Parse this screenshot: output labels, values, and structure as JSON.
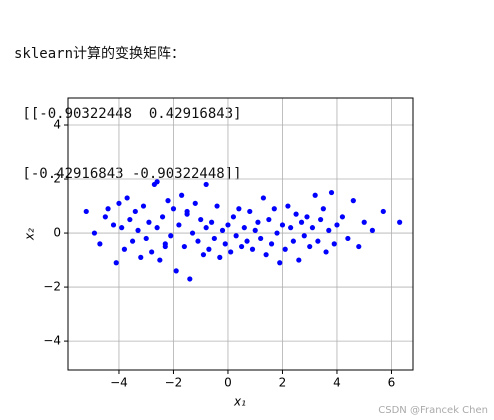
{
  "console": {
    "title": "sklearn计算的变换矩阵：",
    "matrix_lines": [
      " [[-0.90322448  0.42916843]",
      " [-0.42916843 -0.90322448]]"
    ]
  },
  "chart_data": {
    "type": "scatter",
    "xlabel": "x₁",
    "ylabel": "x₂",
    "color": "#0000ff",
    "grid": true,
    "xlim": [
      -5.87,
      6.79
    ],
    "ylim": [
      -5.07,
      5.0
    ],
    "xticks": [
      {
        "value": -4,
        "label": "−4"
      },
      {
        "value": -2,
        "label": "−2"
      },
      0,
      2,
      4,
      6
    ],
    "yticks": [
      {
        "value": -4,
        "label": "−4"
      },
      {
        "value": -2,
        "label": "−2"
      },
      0,
      2,
      4
    ],
    "x": [
      -5.2,
      -4.9,
      -4.7,
      -4.5,
      -4.4,
      -4.2,
      -4.1,
      -4.0,
      -3.9,
      -3.8,
      -3.7,
      -3.6,
      -3.5,
      -3.4,
      -3.3,
      -3.2,
      -3.1,
      -3.0,
      -2.9,
      -2.8,
      -2.7,
      -2.6,
      -2.5,
      -2.4,
      -2.3,
      -2.2,
      -2.1,
      -2.0,
      -1.9,
      -1.8,
      -1.7,
      -1.6,
      -1.5,
      -1.4,
      -1.3,
      -1.2,
      -1.1,
      -1.0,
      -0.9,
      -0.8,
      -0.7,
      -0.6,
      -0.5,
      -0.4,
      -0.3,
      -0.2,
      -0.1,
      0.0,
      0.1,
      0.2,
      0.3,
      0.4,
      0.5,
      0.6,
      0.7,
      0.8,
      0.9,
      1.0,
      1.1,
      1.2,
      1.3,
      1.4,
      1.5,
      1.6,
      1.7,
      1.8,
      1.9,
      2.0,
      2.1,
      2.2,
      2.3,
      2.4,
      2.5,
      2.6,
      2.7,
      2.8,
      2.9,
      3.0,
      3.1,
      3.2,
      3.3,
      3.4,
      3.5,
      3.6,
      3.7,
      3.8,
      3.9,
      4.0,
      4.2,
      4.4,
      4.6,
      4.8,
      5.0,
      5.3,
      5.7,
      6.3,
      -2.6,
      -2.3,
      -1.5,
      -0.8
    ],
    "y": [
      0.8,
      0.0,
      -0.4,
      0.6,
      0.9,
      0.3,
      -1.1,
      1.1,
      0.2,
      -0.6,
      1.3,
      0.5,
      -0.3,
      0.8,
      0.1,
      -0.9,
      1.0,
      -0.2,
      0.4,
      -0.7,
      1.8,
      0.2,
      -1.0,
      0.6,
      -0.4,
      1.2,
      -0.1,
      0.9,
      -1.4,
      0.3,
      1.4,
      -0.5,
      0.7,
      -1.7,
      0.0,
      1.1,
      -0.3,
      0.5,
      -0.8,
      0.2,
      -0.6,
      0.4,
      -0.2,
      1.0,
      -0.9,
      0.1,
      -0.4,
      0.3,
      -0.7,
      0.6,
      -0.1,
      0.9,
      -0.5,
      0.2,
      -0.3,
      0.8,
      -0.6,
      0.1,
      0.4,
      -0.2,
      1.3,
      -0.8,
      0.5,
      -0.4,
      0.9,
      0.0,
      -1.1,
      0.3,
      -0.6,
      1.0,
      0.2,
      -0.3,
      0.7,
      -1.0,
      0.4,
      -0.1,
      0.6,
      -0.5,
      0.2,
      1.4,
      -0.3,
      0.5,
      0.9,
      -0.7,
      0.1,
      1.5,
      -0.4,
      0.3,
      0.6,
      -0.2,
      1.2,
      -0.5,
      0.4,
      0.1,
      0.8,
      0.4,
      1.9,
      -0.5,
      0.8,
      1.8
    ]
  },
  "watermark": "CSDN @Francek Chen"
}
